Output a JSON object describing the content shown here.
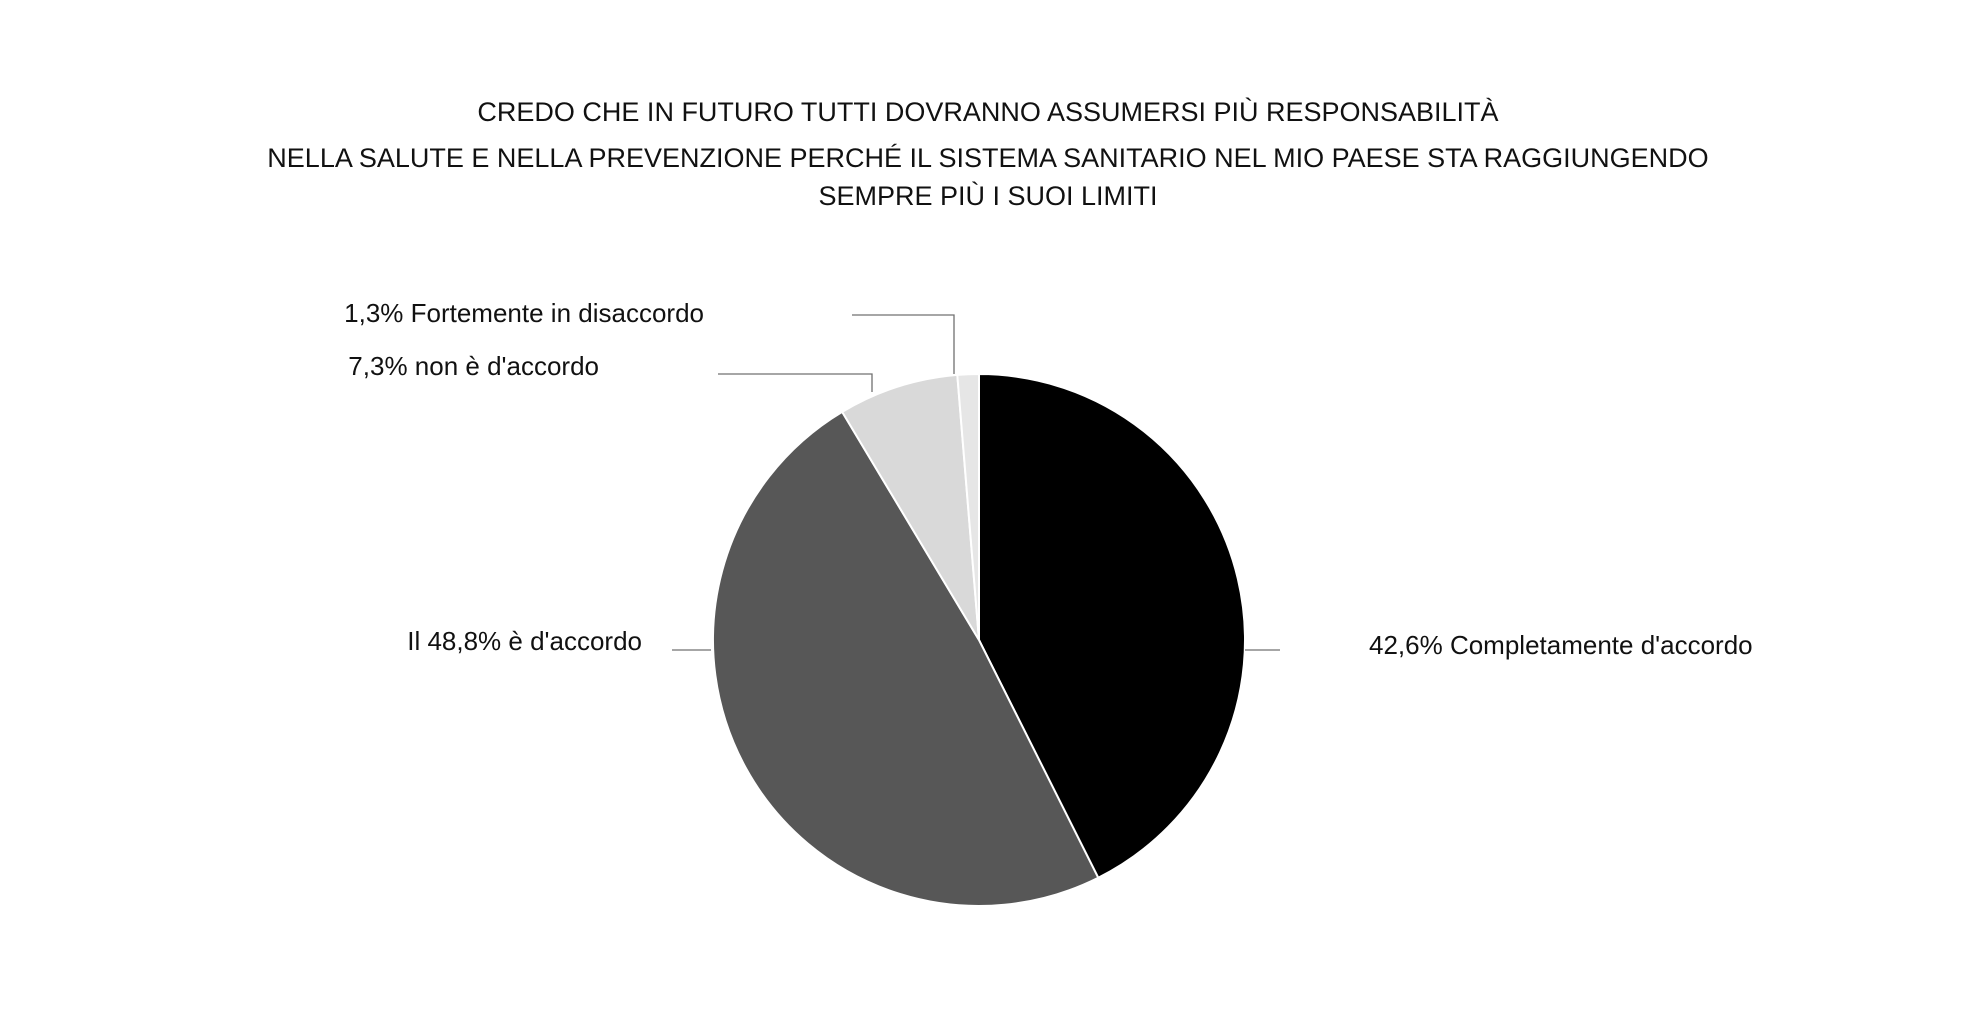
{
  "chart_data": {
    "type": "pie",
    "title_lines": [
      "CREDO CHE IN FUTURO TUTTI DOVRANNO ASSUMERSI PIÙ RESPONSABILITÀ",
      "NELLA SALUTE E NELLA PREVENZIONE PERCHÉ IL SISTEMA SANITARIO NEL MIO PAESE STA RAGGIUNGENDO",
      "SEMPRE PIÙ I SUOI LIMITI"
    ],
    "slices": [
      {
        "value": 42.6,
        "label": "42,6% Completamente d'accordo",
        "color": "#000000"
      },
      {
        "value": 48.8,
        "label": "Il 48,8% è d'accordo",
        "color": "#575757"
      },
      {
        "value": 7.3,
        "label": "7,3% non è d'accordo",
        "color": "#d9d9d9"
      },
      {
        "value": 1.3,
        "label": "1,3% Fortemente in disaccordo",
        "color": "#e6e6e6"
      }
    ],
    "start_angle_deg": 0,
    "direction": "clockwise",
    "legend": "none",
    "grid": false
  }
}
